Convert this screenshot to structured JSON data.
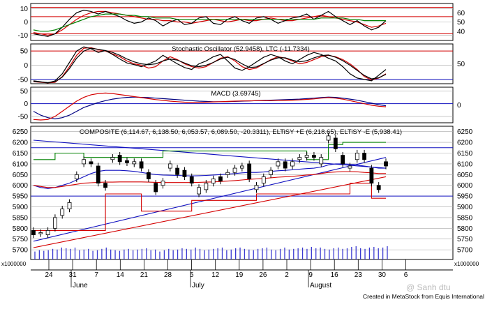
{
  "titles": {
    "stoch": "Stochastic Oscillator (52.9458), LTC (-11.7334)",
    "macd": "MACD (3.69745)",
    "price": "COMPOSITE (6,114.67, 6,138.50, 6,053.57, 6,089.50, -20.3311), ELTiSY +E (6,218.65), ELTiSY -E (5,938.41)"
  },
  "volume_scale_label": "x1000000",
  "credit": "Created in MetaStock from Equis International",
  "watermark": "@ Sanh  dtu",
  "colors": {
    "red": "#d40000",
    "black": "#000000",
    "blue": "#1010c0",
    "green": "#008000",
    "navy": "#000080",
    "grid": "#a8a8a8",
    "vol": "#3a3ad0"
  },
  "chart_data": [
    {
      "panel": "osc-top",
      "type": "line",
      "y_ticks_left": [
        "10",
        "0",
        "-10"
      ],
      "y_ticks_right": [
        "60",
        "50",
        "40"
      ],
      "ylim": [
        -14,
        14
      ],
      "series": [
        {
          "color": "#d40000",
          "values": [
            -8,
            -9,
            -10,
            -9,
            -6,
            -2,
            2,
            5,
            7,
            8,
            8,
            7,
            6,
            5,
            4,
            3,
            2,
            2,
            1,
            1,
            0,
            0,
            -1,
            0,
            1,
            2,
            1,
            0,
            1,
            2,
            1,
            1,
            2,
            3,
            2,
            1,
            1,
            2,
            3,
            4,
            5,
            4,
            3,
            2,
            1,
            0,
            -2,
            -4,
            -3,
            -1
          ]
        },
        {
          "color": "#000000",
          "values": [
            -9,
            -10,
            -11,
            -9,
            -4,
            2,
            7,
            9,
            8,
            6,
            8,
            6,
            4,
            1,
            -1,
            0,
            3,
            1,
            -3,
            0,
            2,
            -2,
            -1,
            3,
            4,
            -1,
            -2,
            2,
            4,
            1,
            -1,
            3,
            4,
            2,
            -1,
            1,
            3,
            4,
            6,
            2,
            5,
            8,
            4,
            1,
            -2,
            1,
            -3,
            -6,
            -4,
            1
          ]
        },
        {
          "color": "#008000",
          "values": [
            -6,
            -7,
            -7,
            -6,
            -4,
            -2,
            0,
            2,
            4,
            5,
            6,
            6,
            6,
            5,
            5,
            4,
            4,
            3,
            3,
            3,
            2,
            2,
            2,
            2,
            2,
            2,
            2,
            2,
            2,
            2,
            2,
            2,
            2,
            2,
            2,
            2,
            2,
            2,
            2,
            2,
            3,
            3,
            3,
            3,
            2,
            2,
            1,
            1,
            1,
            1
          ]
        }
      ],
      "hlines": [
        {
          "value": 11,
          "color": "#d40000"
        },
        {
          "value": 4,
          "color": "#d40000"
        },
        {
          "value": -9,
          "color": "#d40000"
        }
      ]
    },
    {
      "panel": "stochastic",
      "type": "line",
      "y_ticks_left": [
        "50",
        "0",
        "-50"
      ],
      "y_ticks_right": [
        "50"
      ],
      "ylim": [
        -65,
        75
      ],
      "series": [
        {
          "color": "#d40000",
          "values": [
            -58,
            -60,
            -62,
            -60,
            -40,
            -5,
            35,
            60,
            62,
            55,
            50,
            40,
            30,
            15,
            5,
            0,
            -10,
            -5,
            15,
            30,
            20,
            5,
            -5,
            -10,
            -5,
            10,
            25,
            30,
            15,
            -5,
            -15,
            -10,
            5,
            20,
            30,
            25,
            15,
            5,
            10,
            20,
            30,
            35,
            30,
            20,
            5,
            -15,
            -40,
            -52,
            -45,
            -30
          ]
        },
        {
          "color": "#000000",
          "values": [
            -55,
            -58,
            -62,
            -55,
            -30,
            10,
            50,
            65,
            58,
            45,
            52,
            38,
            22,
            8,
            2,
            -5,
            5,
            15,
            35,
            20,
            5,
            -8,
            -15,
            5,
            15,
            30,
            38,
            15,
            -10,
            -18,
            -5,
            12,
            28,
            38,
            30,
            15,
            5,
            20,
            35,
            45,
            38,
            25,
            15,
            -5,
            -30,
            -45,
            -50,
            -55,
            -35,
            -15
          ]
        },
        {
          "color": "#000000",
          "values": [
            -57,
            -59,
            -61,
            -58,
            -42,
            -12,
            25,
            50,
            60,
            56,
            52,
            45,
            35,
            22,
            12,
            5,
            2,
            5,
            15,
            22,
            18,
            8,
            -2,
            -5,
            0,
            10,
            22,
            28,
            20,
            5,
            -8,
            -6,
            6,
            18,
            26,
            26,
            18,
            12,
            16,
            26,
            34,
            36,
            28,
            16,
            0,
            -18,
            -36,
            -48,
            -44,
            -32
          ]
        }
      ],
      "hlines": [
        {
          "value": 50,
          "color": "#d40000"
        },
        {
          "value": -50,
          "color": "#1010c0"
        }
      ]
    },
    {
      "panel": "macd",
      "type": "line",
      "y_ticks_left": [
        "50",
        "0",
        "-50"
      ],
      "y_ticks_right": [
        "0"
      ],
      "ylim": [
        -75,
        65
      ],
      "series": [
        {
          "color": "#000080",
          "values": [
            -30,
            -45,
            -55,
            -60,
            -55,
            -45,
            -30,
            -15,
            -5,
            5,
            12,
            18,
            22,
            25,
            26,
            25,
            24,
            22,
            20,
            18,
            16,
            14,
            12,
            10,
            9,
            8,
            8,
            8,
            9,
            10,
            11,
            12,
            13,
            14,
            15,
            16,
            17,
            18,
            20,
            22,
            24,
            26,
            25,
            22,
            18,
            14,
            8,
            2,
            -4,
            -8
          ]
        },
        {
          "color": "#d40000",
          "values": [
            -62,
            -64,
            -62,
            -50,
            -30,
            -10,
            10,
            25,
            35,
            40,
            42,
            40,
            36,
            32,
            28,
            24,
            20,
            16,
            13,
            10,
            8,
            6,
            5,
            5,
            6,
            7,
            8,
            9,
            10,
            11,
            11,
            12,
            12,
            12,
            13,
            13,
            14,
            15,
            17,
            19,
            22,
            24,
            22,
            18,
            12,
            6,
            0,
            -6,
            -10,
            -12
          ]
        }
      ],
      "hlines": [
        {
          "value": 0,
          "color": "#1010c0"
        }
      ]
    },
    {
      "panel": "price",
      "type": "candlestick",
      "y_ticks": [
        "6250",
        "6200",
        "6150",
        "6100",
        "6050",
        "6000",
        "5950",
        "5900",
        "5850",
        "5800",
        "5750",
        "5700"
      ],
      "ylim": [
        5655,
        6275
      ],
      "x_ticks": [
        "24",
        "31",
        "7",
        "14",
        "21",
        "28",
        "5",
        "12",
        "19",
        "26",
        "2",
        "9",
        "16",
        "23",
        "30",
        "6"
      ],
      "months": [
        "June",
        "July",
        "August"
      ],
      "candles": [
        {
          "o": 5790,
          "c": 5770
        },
        {
          "o": 5775,
          "c": 5780
        },
        {
          "o": 5770,
          "c": 5790
        },
        {
          "o": 5800,
          "c": 5850
        },
        {
          "o": 5860,
          "c": 5890
        },
        {
          "o": 5890,
          "c": 5920
        },
        {
          "o": 6030,
          "c": 6050
        },
        {
          "o": 6100,
          "c": 6120
        },
        {
          "o": 6110,
          "c": 6100
        },
        {
          "o": 6090,
          "c": 6010
        },
        {
          "o": 6010,
          "c": 5990
        },
        {
          "o": 6120,
          "c": 6130
        },
        {
          "o": 6140,
          "c": 6110
        },
        {
          "o": 6115,
          "c": 6105
        },
        {
          "o": 6100,
          "c": 6110
        },
        {
          "o": 6110,
          "c": 6080
        },
        {
          "o": 6060,
          "c": 6030
        },
        {
          "o": 6010,
          "c": 5970
        },
        {
          "o": 6000,
          "c": 6020
        },
        {
          "o": 6080,
          "c": 6100
        },
        {
          "o": 6080,
          "c": 6050
        },
        {
          "o": 6070,
          "c": 6040
        },
        {
          "o": 6040,
          "c": 6010
        },
        {
          "o": 5960,
          "c": 5990
        },
        {
          "o": 5980,
          "c": 6010
        },
        {
          "o": 6010,
          "c": 6030
        },
        {
          "o": 6040,
          "c": 6020
        },
        {
          "o": 6050,
          "c": 6060
        },
        {
          "o": 6060,
          "c": 6080
        },
        {
          "o": 6080,
          "c": 6090
        },
        {
          "o": 6100,
          "c": 6030
        },
        {
          "o": 5980,
          "c": 6000
        },
        {
          "o": 6010,
          "c": 6040
        },
        {
          "o": 6050,
          "c": 6070
        },
        {
          "o": 6090,
          "c": 6110
        },
        {
          "o": 6110,
          "c": 6080
        },
        {
          "o": 6090,
          "c": 6110
        },
        {
          "o": 6120,
          "c": 6130
        },
        {
          "o": 6130,
          "c": 6140
        },
        {
          "o": 6140,
          "c": 6130
        },
        {
          "o": 6100,
          "c": 6130
        },
        {
          "o": 6210,
          "c": 6230
        },
        {
          "o": 6220,
          "c": 6170
        },
        {
          "o": 6140,
          "c": 6100
        },
        {
          "o": 6080,
          "c": 6090
        },
        {
          "o": 6120,
          "c": 6150
        },
        {
          "o": 6150,
          "c": 6120
        },
        {
          "o": 6080,
          "c": 6010
        },
        {
          "o": 6000,
          "c": 5980
        },
        {
          "o": 6110,
          "c": 6090
        }
      ],
      "lines": [
        {
          "color": "#1010c0",
          "points": [
            [
              0,
              6210
            ],
            [
              49,
              6080
            ]
          ]
        },
        {
          "color": "#1010c0",
          "points": [
            [
              0,
              5740
            ],
            [
              49,
              6130
            ]
          ]
        },
        {
          "color": "#d40000",
          "points": [
            [
              0,
              5710
            ],
            [
              49,
              6040
            ]
          ]
        },
        {
          "color": "#1010c0",
          "values": [
            6000,
            5990,
            5985,
            5990,
            6000,
            6010,
            6025,
            6040,
            6055,
            6065,
            6070,
            6070,
            6070,
            6068,
            6065,
            6060,
            6055,
            6050,
            6048,
            6047,
            6046,
            6045,
            6044,
            6045,
            6046,
            6048,
            6050,
            6052,
            6055,
            6058,
            6060,
            6060,
            6062,
            6065,
            6068,
            6070,
            6072,
            6075,
            6078,
            6080,
            6085,
            6095,
            6100,
            6100,
            6098,
            6095,
            6090,
            6085,
            6080,
            6080
          ]
        },
        {
          "color": "#d40000",
          "values": [
            6000,
            5995,
            5990,
            5990,
            5995,
            6000,
            6005,
            6010,
            6012,
            6014,
            6015,
            6015,
            6016,
            6016,
            6016,
            6016,
            6015,
            6014,
            6013,
            6013,
            6013,
            6013,
            6013,
            6014,
            6015,
            6016,
            6018,
            6020,
            6022,
            6025,
            6028,
            6030,
            6032,
            6035,
            6038,
            6040,
            6042,
            6045,
            6048,
            6050,
            6055,
            6060,
            6062,
            6064,
            6064,
            6063,
            6060,
            6058,
            6055,
            6055
          ]
        },
        {
          "color": "#008000",
          "steps": [
            [
              0,
              6120
            ],
            [
              3,
              6120
            ],
            [
              3,
              6150
            ],
            [
              7,
              6150
            ],
            [
              7,
              6130
            ],
            [
              18,
              6130
            ],
            [
              18,
              6160
            ],
            [
              38,
              6160
            ],
            [
              38,
              6120
            ],
            [
              41,
              6120
            ],
            [
              41,
              6190
            ],
            [
              43,
              6190
            ],
            [
              43,
              6200
            ],
            [
              49,
              6200
            ]
          ]
        },
        {
          "color": "#d40000",
          "steps": [
            [
              0,
              5790
            ],
            [
              10,
              5790
            ],
            [
              10,
              5960
            ],
            [
              15,
              5960
            ],
            [
              15,
              5880
            ],
            [
              22,
              5880
            ],
            [
              22,
              5930
            ],
            [
              31,
              5930
            ],
            [
              31,
              5960
            ],
            [
              44,
              5960
            ],
            [
              44,
              6010
            ],
            [
              47,
              6010
            ],
            [
              47,
              5940
            ],
            [
              49,
              5940
            ]
          ]
        }
      ],
      "hlines": [
        {
          "value": 6175,
          "color": "#1010c0"
        },
        {
          "value": 5950,
          "color": "#1010c0"
        }
      ]
    },
    {
      "panel": "volume",
      "type": "bar",
      "values": [
        0.6,
        0.7,
        0.65,
        0.7,
        0.8,
        0.75,
        0.9,
        0.85,
        0.8,
        0.9,
        0.7,
        0.75,
        0.8,
        0.65,
        0.7,
        0.8,
        0.9,
        0.75,
        0.7,
        0.65,
        0.75,
        0.8,
        0.7,
        0.75,
        0.8,
        0.85,
        0.7,
        0.75,
        0.6,
        0.7,
        0.8,
        0.7,
        0.75,
        0.85,
        0.8,
        0.75,
        0.9,
        0.8,
        0.7,
        0.75,
        0.8,
        0.85,
        0.9,
        0.7,
        0.75,
        0.85,
        0.9,
        0.8,
        0.75,
        0.7,
        0.8,
        0.85,
        0.9,
        0.75,
        0.7,
        0.8,
        0.9,
        0.75,
        0.8,
        0.85,
        0.9,
        0.8,
        0.95,
        0.85,
        0.9,
        0.8,
        0.75,
        0.85,
        0.9,
        0.8,
        0.85,
        0.95,
        1.0,
        0.85,
        0.8,
        0.9,
        0.95,
        0.85,
        0.9,
        1.0
      ]
    }
  ]
}
